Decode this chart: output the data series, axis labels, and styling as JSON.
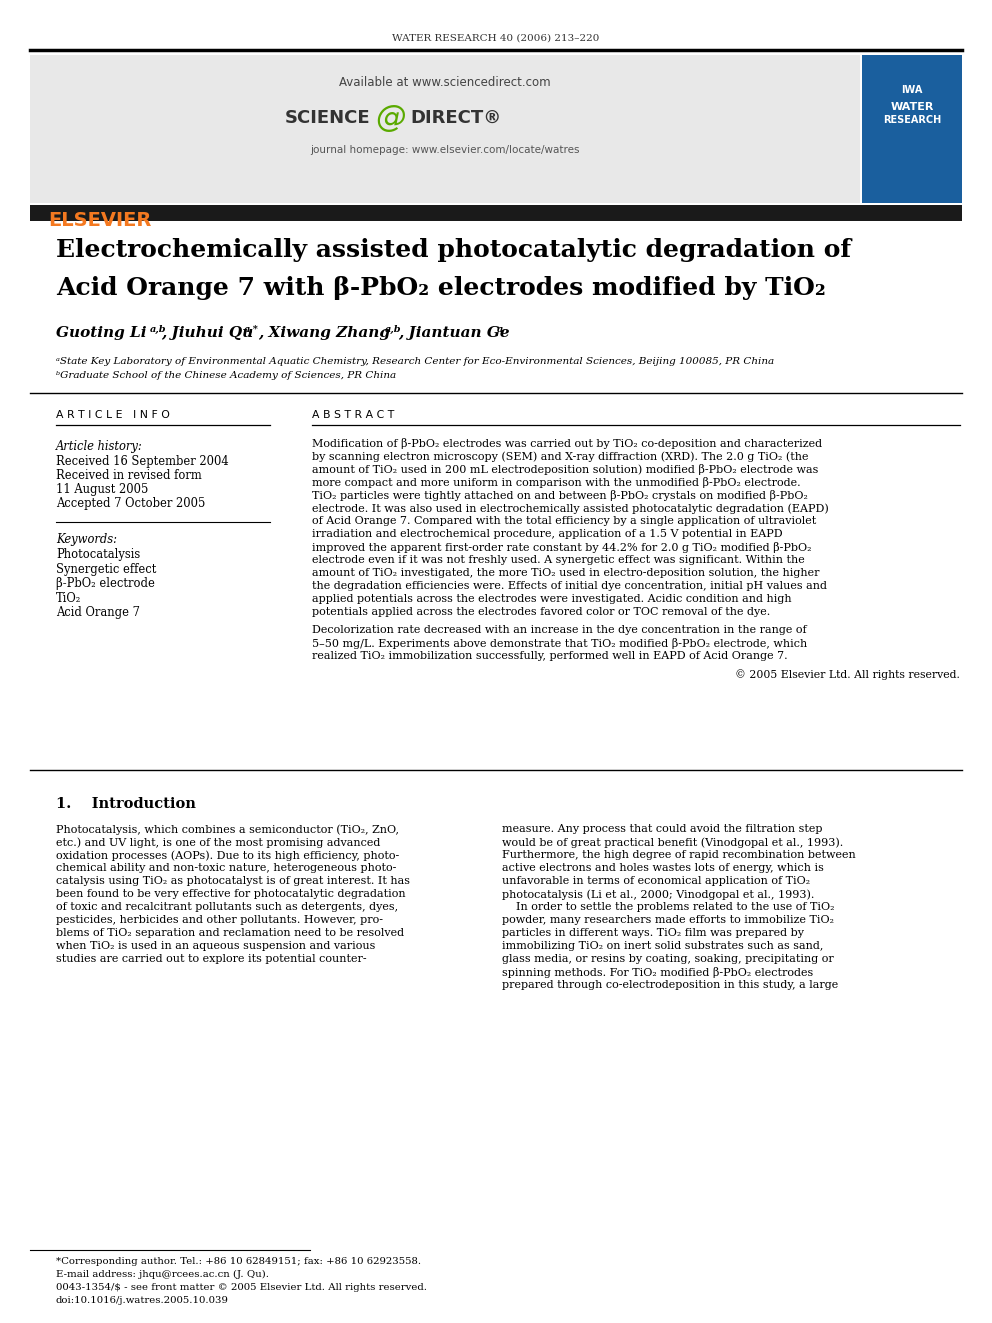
{
  "journal_header": "WATER RESEARCH 40 (2006) 213–220",
  "available_text": "Available at www.sciencedirect.com",
  "journal_homepage": "journal homepage: www.elsevier.com/locate/watres",
  "title_line1": "Electrochemically assisted photocatalytic degradation of",
  "title_line2": "Acid Orange 7 with β-PbO₂ electrodes modified by TiO₂",
  "affil_a": "ᵃState Key Laboratory of Environmental Aquatic Chemistry, Research Center for Eco-Environmental Sciences, Beijing 100085, PR China",
  "affil_b": "ᵇGraduate School of the Chinese Academy of Sciences, PR China",
  "article_info_header": "A R T I C L E   I N F O",
  "article_history_label": "Article history:",
  "received1": "Received 16 September 2004",
  "received2": "Received in revised form",
  "received2b": "11 August 2005",
  "accepted": "Accepted 7 October 2005",
  "keywords_label": "Keywords:",
  "keywords": [
    "Photocatalysis",
    "Synergetic effect",
    "β-PbO₂ electrode",
    "TiO₂",
    "Acid Orange 7"
  ],
  "abstract_header": "A B S T R A C T",
  "abstract_p1": "Modification of β-PbO₂ electrodes was carried out by TiO₂ co-deposition and characterized\nby scanning electron microscopy (SEM) and X-ray diffraction (XRD). The 2.0 g TiO₂ (the\namount of TiO₂ used in 200 mL electrodeposition solution) modified β-PbO₂ electrode was\nmore compact and more uniform in comparison with the unmodified β-PbO₂ electrode.\nTiO₂ particles were tightly attached on and between β-PbO₂ crystals on modified β-PbO₂\nelectrode. It was also used in electrochemically assisted photocatalytic degradation (EAPD)\nof Acid Orange 7. Compared with the total efficiency by a single application of ultraviolet\nirradiation and electrochemical procedure, application of a 1.5 V potential in EAPD\nimproved the apparent first-order rate constant by 44.2% for 2.0 g TiO₂ modified β-PbO₂\nelectrode even if it was not freshly used. A synergetic effect was significant. Within the\namount of TiO₂ investigated, the more TiO₂ used in electro-deposition solution, the higher\nthe degradation efficiencies were. Effects of initial dye concentration, initial pH values and\napplied potentials across the electrodes were investigated. Acidic condition and high\npotentials applied across the electrodes favored color or TOC removal of the dye.",
  "abstract_p2": "Decolorization rate decreased with an increase in the dye concentration in the range of\n5–50 mg/L. Experiments above demonstrate that TiO₂ modified β-PbO₂ electrode, which\nrealized TiO₂ immobilization successfully, performed well in EAPD of Acid Orange 7.",
  "abstract_copyright": "© 2005 Elsevier Ltd. All rights reserved.",
  "section1_header": "1.    Introduction",
  "intro_col1": "Photocatalysis, which combines a semiconductor (TiO₂, ZnO,\netc.) and UV light, is one of the most promising advanced\noxidation processes (AOPs). Due to its high efficiency, photo-\nchemical ability and non-toxic nature, heterogeneous photo-\ncatalysis using TiO₂ as photocatalyst is of great interest. It has\nbeen found to be very effective for photocatalytic degradation\nof toxic and recalcitrant pollutants such as detergents, dyes,\npesticides, herbicides and other pollutants. However, pro-\nblems of TiO₂ separation and reclamation need to be resolved\nwhen TiO₂ is used in an aqueous suspension and various\nstudies are carried out to explore its potential counter-",
  "intro_col2": "measure. Any process that could avoid the filtration step\nwould be of great practical benefit (Vinodgopal et al., 1993).\nFurthermore, the high degree of rapid recombination between\nactive electrons and holes wastes lots of energy, which is\nunfavorable in terms of economical application of TiO₂\nphotocatalysis (Li et al., 2000; Vinodgopal et al., 1993).\n    In order to settle the problems related to the use of TiO₂\npowder, many researchers made efforts to immobilize TiO₂\nparticles in different ways. TiO₂ film was prepared by\nimmobilizing TiO₂ on inert solid substrates such as sand,\nglass media, or resins by coating, soaking, precipitating or\nspinning methods. For TiO₂ modified β-PbO₂ electrodes\nprepared through co-electrodeposition in this study, a large",
  "footnote1": "*Corresponding author. Tel.: +86 10 62849151; fax: +86 10 62923558.",
  "footnote2": "E-mail address: jhqu@rcees.ac.cn (J. Qu).",
  "footnote3": "0043-1354/$ - see front matter © 2005 Elsevier Ltd. All rights reserved.",
  "footnote4": "doi:10.1016/j.watres.2005.10.039",
  "bg_color": "#ffffff",
  "text_color": "#000000",
  "header_bg": "#e8e8e8",
  "dark_bar_color": "#1a1a1a",
  "elsevier_orange": "#f47920",
  "link_color": "#0000cc"
}
